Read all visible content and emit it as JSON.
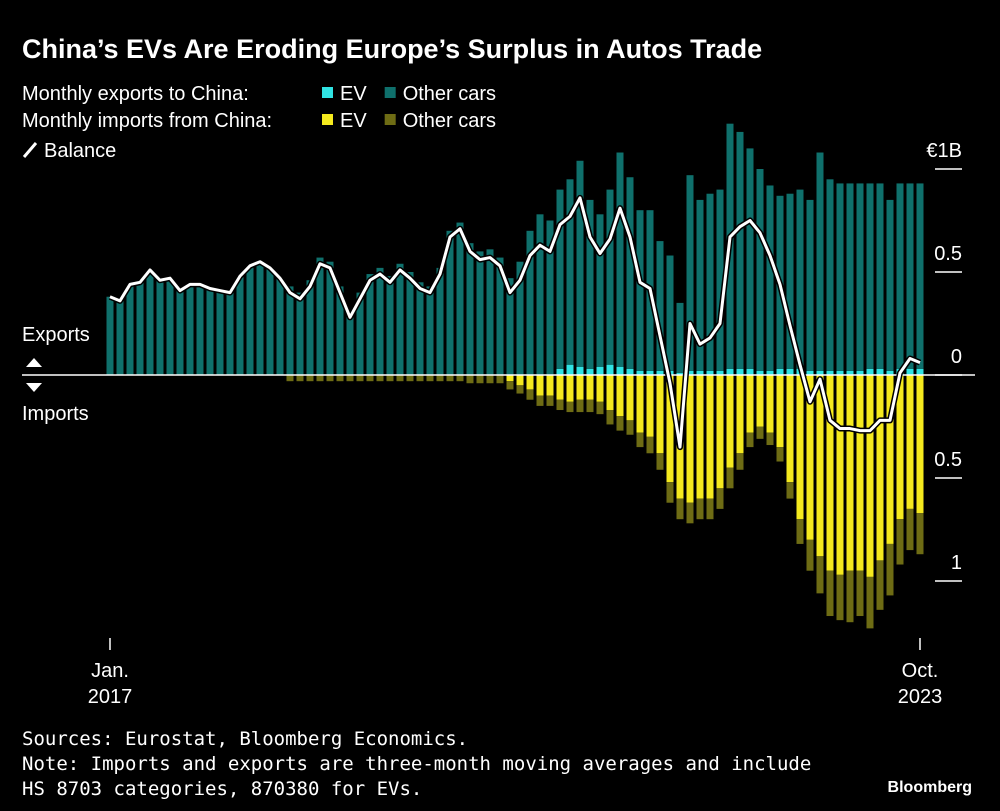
{
  "chart_data": {
    "type": "bar",
    "title": "China’s EVs Are Eroding Europe’s Surplus in Autos Trade",
    "exports": {
      "label": "Monthly exports to China:",
      "series": [
        {
          "name": "EV",
          "color": "#30e3e3",
          "values": [
            0,
            0,
            0,
            0,
            0,
            0,
            0,
            0,
            0,
            0,
            0,
            0,
            0,
            0,
            0,
            0,
            0,
            0,
            0,
            0,
            0,
            0,
            0,
            0,
            0,
            0,
            0,
            0,
            0,
            0,
            0,
            0,
            0,
            0,
            0,
            0,
            0,
            0,
            0,
            0,
            0,
            0,
            0,
            0,
            0,
            0.03,
            0.05,
            0.04,
            0.03,
            0.04,
            0.05,
            0.04,
            0.03,
            0.02,
            0.02,
            0.02,
            0.02,
            0.01,
            0.02,
            0.02,
            0.02,
            0.02,
            0.03,
            0.03,
            0.03,
            0.02,
            0.02,
            0.03,
            0.03,
            0.03,
            0.02,
            0.02,
            0.02,
            0.02,
            0.02,
            0.02,
            0.03,
            0.03,
            0.02,
            0.03,
            0.03,
            0.03
          ]
        },
        {
          "name": "Other cars",
          "color": "#0f706c",
          "values": [
            0.38,
            0.36,
            0.44,
            0.45,
            0.51,
            0.46,
            0.47,
            0.41,
            0.44,
            0.44,
            0.42,
            0.41,
            0.4,
            0.48,
            0.53,
            0.55,
            0.52,
            0.47,
            0.43,
            0.4,
            0.46,
            0.57,
            0.55,
            0.43,
            0.31,
            0.4,
            0.49,
            0.52,
            0.48,
            0.54,
            0.5,
            0.45,
            0.43,
            0.52,
            0.7,
            0.74,
            0.64,
            0.6,
            0.61,
            0.57,
            0.47,
            0.55,
            0.7,
            0.78,
            0.75,
            0.87,
            0.9,
            1.0,
            0.82,
            0.74,
            0.85,
            1.04,
            0.93,
            0.78,
            0.78,
            0.63,
            0.56,
            0.34,
            0.95,
            0.83,
            0.86,
            0.88,
            1.19,
            1.15,
            1.07,
            0.98,
            0.9,
            0.84,
            0.85,
            0.87,
            0.83,
            1.06,
            0.93,
            0.91,
            0.91,
            0.91,
            0.9,
            0.9,
            0.83,
            0.9,
            0.9,
            0.9
          ]
        }
      ]
    },
    "imports": {
      "label": "Monthly imports from China:",
      "series": [
        {
          "name": "EV",
          "color": "#f5ea1e",
          "values": [
            0,
            0,
            0,
            0,
            0,
            0,
            0,
            0,
            0,
            0,
            0,
            0,
            0,
            0,
            0,
            0,
            0,
            0,
            0,
            0,
            0,
            0,
            0,
            0,
            0,
            0,
            0,
            0,
            0,
            0,
            0,
            0,
            0,
            0,
            0,
            0,
            0,
            0,
            0,
            0,
            -0.03,
            -0.05,
            -0.07,
            -0.1,
            -0.1,
            -0.12,
            -0.13,
            -0.12,
            -0.12,
            -0.13,
            -0.17,
            -0.2,
            -0.22,
            -0.28,
            -0.3,
            -0.38,
            -0.52,
            -0.6,
            -0.62,
            -0.6,
            -0.6,
            -0.55,
            -0.45,
            -0.38,
            -0.28,
            -0.25,
            -0.28,
            -0.35,
            -0.52,
            -0.7,
            -0.8,
            -0.88,
            -0.95,
            -0.97,
            -0.95,
            -0.95,
            -0.98,
            -0.9,
            -0.82,
            -0.7,
            -0.65,
            -0.67
          ]
        },
        {
          "name": "Other cars",
          "color": "#6e6c14",
          "values": [
            0,
            0,
            0,
            0,
            0,
            0,
            0,
            0,
            0,
            0,
            0,
            0,
            0,
            0,
            0,
            0,
            0,
            0,
            -0.03,
            -0.03,
            -0.03,
            -0.03,
            -0.03,
            -0.03,
            -0.03,
            -0.03,
            -0.03,
            -0.03,
            -0.03,
            -0.03,
            -0.03,
            -0.03,
            -0.03,
            -0.03,
            -0.03,
            -0.03,
            -0.04,
            -0.04,
            -0.04,
            -0.04,
            -0.04,
            -0.04,
            -0.05,
            -0.05,
            -0.05,
            -0.05,
            -0.05,
            -0.06,
            -0.06,
            -0.06,
            -0.07,
            -0.07,
            -0.07,
            -0.07,
            -0.08,
            -0.08,
            -0.1,
            -0.1,
            -0.1,
            -0.1,
            -0.1,
            -0.1,
            -0.1,
            -0.08,
            -0.07,
            -0.06,
            -0.06,
            -0.07,
            -0.08,
            -0.12,
            -0.15,
            -0.18,
            -0.22,
            -0.22,
            -0.25,
            -0.22,
            -0.25,
            -0.24,
            -0.25,
            -0.22,
            -0.2,
            -0.2
          ]
        }
      ]
    },
    "balance": {
      "name": "Balance",
      "color": "#ffffff",
      "values": [
        0.38,
        0.36,
        0.44,
        0.45,
        0.51,
        0.46,
        0.47,
        0.41,
        0.44,
        0.44,
        0.42,
        0.41,
        0.4,
        0.48,
        0.53,
        0.55,
        0.52,
        0.47,
        0.4,
        0.37,
        0.43,
        0.54,
        0.52,
        0.4,
        0.28,
        0.37,
        0.46,
        0.49,
        0.45,
        0.51,
        0.47,
        0.42,
        0.4,
        0.49,
        0.67,
        0.71,
        0.6,
        0.56,
        0.57,
        0.53,
        0.4,
        0.46,
        0.58,
        0.63,
        0.6,
        0.73,
        0.77,
        0.86,
        0.67,
        0.59,
        0.66,
        0.81,
        0.67,
        0.45,
        0.42,
        0.19,
        -0.04,
        -0.35,
        0.25,
        0.15,
        0.18,
        0.25,
        0.67,
        0.72,
        0.75,
        0.69,
        0.58,
        0.44,
        0.24,
        0.05,
        -0.13,
        -0.02,
        -0.22,
        -0.26,
        -0.26,
        -0.27,
        -0.27,
        -0.22,
        -0.22,
        0.01,
        0.08,
        0.06
      ]
    },
    "categories": [
      "Jan. 2017",
      null,
      null,
      null,
      null,
      null,
      null,
      null,
      null,
      null,
      null,
      null,
      null,
      null,
      null,
      null,
      null,
      null,
      null,
      null,
      null,
      null,
      null,
      null,
      null,
      null,
      null,
      null,
      null,
      null,
      null,
      null,
      null,
      null,
      null,
      null,
      null,
      null,
      null,
      null,
      null,
      null,
      null,
      null,
      null,
      null,
      null,
      null,
      null,
      null,
      null,
      null,
      null,
      null,
      null,
      null,
      null,
      null,
      null,
      null,
      null,
      null,
      null,
      null,
      null,
      null,
      null,
      null,
      null,
      null,
      null,
      null,
      null,
      null,
      null,
      null,
      null,
      null,
      null,
      null,
      null,
      "Oct. 2023"
    ],
    "ylim": [
      -1.25,
      1.25
    ],
    "yticks": [
      {
        "value": -1,
        "label": "1"
      },
      {
        "value": -0.5,
        "label": "0.5"
      },
      0,
      0.5,
      {
        "value": 1,
        "label": "€1B"
      }
    ],
    "exports_label": "Exports",
    "imports_label": "Imports",
    "sources": "Sources: Eurostat, Bloomberg Economics.",
    "note": [
      "Note: Imports and exports are three-month moving averages and include",
      "HS 8703 categories, 870380 for EVs."
    ],
    "brand": "Bloomberg"
  }
}
